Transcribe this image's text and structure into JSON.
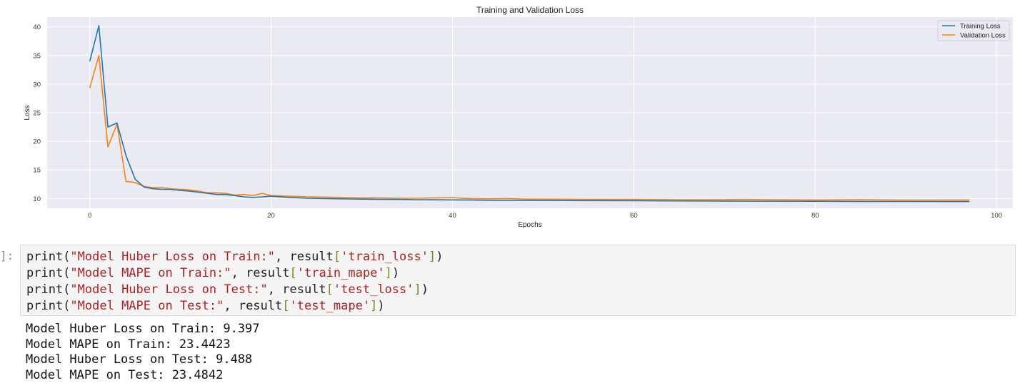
{
  "chart_data": {
    "type": "line",
    "title": "Training and Validation Loss",
    "xlabel": "Epochs",
    "ylabel": "Loss",
    "xlim": [
      -4.7,
      101.8
    ],
    "ylim": [
      8.3,
      41.7
    ],
    "xticks": [
      0,
      20,
      40,
      60,
      80,
      100
    ],
    "yticks": [
      10,
      15,
      20,
      25,
      30,
      35,
      40
    ],
    "grid": true,
    "legend_position": "top-right",
    "series": [
      {
        "name": "Training Loss",
        "color": "#1f77b4",
        "x": [
          0,
          1,
          2,
          3,
          4,
          5,
          6,
          7,
          8,
          9,
          10,
          11,
          12,
          13,
          14,
          15,
          16,
          17,
          18,
          19,
          20,
          22,
          24,
          26,
          28,
          30,
          32,
          34,
          36,
          38,
          40,
          42,
          44,
          46,
          48,
          50,
          55,
          60,
          65,
          70,
          75,
          80,
          85,
          90,
          95,
          97
        ],
        "values": [
          34.0,
          40.2,
          22.5,
          23.2,
          17.5,
          13.4,
          12.0,
          11.7,
          11.6,
          11.6,
          11.4,
          11.3,
          11.1,
          10.9,
          10.7,
          10.7,
          10.5,
          10.3,
          10.2,
          10.3,
          10.4,
          10.2,
          10.05,
          10.0,
          9.95,
          9.9,
          9.85,
          9.85,
          9.8,
          9.78,
          9.76,
          9.74,
          9.7,
          9.7,
          9.68,
          9.66,
          9.63,
          9.62,
          9.58,
          9.56,
          9.54,
          9.52,
          9.5,
          9.48,
          9.47,
          9.47
        ]
      },
      {
        "name": "Validation Loss",
        "color": "#ff7f0e",
        "x": [
          0,
          1,
          2,
          3,
          4,
          5,
          6,
          7,
          8,
          9,
          10,
          11,
          12,
          13,
          14,
          15,
          16,
          17,
          18,
          19,
          20,
          22,
          24,
          26,
          28,
          30,
          32,
          34,
          36,
          38,
          40,
          42,
          44,
          46,
          48,
          50,
          55,
          60,
          65,
          70,
          72,
          75,
          80,
          85,
          90,
          95,
          97
        ],
        "values": [
          29.3,
          35.0,
          19.0,
          23.0,
          13.0,
          12.8,
          12.1,
          11.9,
          11.9,
          11.7,
          11.6,
          11.5,
          11.3,
          11.0,
          11.0,
          10.9,
          10.6,
          10.7,
          10.5,
          10.9,
          10.5,
          10.4,
          10.3,
          10.25,
          10.2,
          10.1,
          10.1,
          10.05,
          10.05,
          10.1,
          10.15,
          10.0,
          9.95,
          10.0,
          9.9,
          9.9,
          9.85,
          9.85,
          9.8,
          9.8,
          9.85,
          9.8,
          9.75,
          9.78,
          9.72,
          9.75,
          9.75
        ]
      }
    ]
  },
  "cell": {
    "prompt": "]:",
    "lines": [
      [
        {
          "c": "tok-fn",
          "t": "print("
        },
        {
          "c": "tok-str",
          "t": "\"Model Huber Loss on Train:\""
        },
        {
          "c": "tok-plain",
          "t": ", result"
        },
        {
          "c": "tok-br",
          "t": "["
        },
        {
          "c": "tok-str",
          "t": "'train_loss'"
        },
        {
          "c": "tok-br",
          "t": "]"
        },
        {
          "c": "tok-plain",
          "t": ")"
        }
      ],
      [
        {
          "c": "tok-fn",
          "t": "print("
        },
        {
          "c": "tok-str",
          "t": "\"Model MAPE on Train:\""
        },
        {
          "c": "tok-plain",
          "t": ", result"
        },
        {
          "c": "tok-br",
          "t": "["
        },
        {
          "c": "tok-str",
          "t": "'train_mape'"
        },
        {
          "c": "tok-br",
          "t": "]"
        },
        {
          "c": "tok-plain",
          "t": ")"
        }
      ],
      [
        {
          "c": "tok-fn",
          "t": "print("
        },
        {
          "c": "tok-str",
          "t": "\"Model Huber Loss on Test:\""
        },
        {
          "c": "tok-plain",
          "t": ", result"
        },
        {
          "c": "tok-br",
          "t": "["
        },
        {
          "c": "tok-str",
          "t": "'test_loss'"
        },
        {
          "c": "tok-br",
          "t": "]"
        },
        {
          "c": "tok-plain",
          "t": ")"
        }
      ],
      [
        {
          "c": "tok-fn",
          "t": "print("
        },
        {
          "c": "tok-str",
          "t": "\"Model MAPE on Test:\""
        },
        {
          "c": "tok-plain",
          "t": ", result"
        },
        {
          "c": "tok-br",
          "t": "["
        },
        {
          "c": "tok-str",
          "t": "'test_mape'"
        },
        {
          "c": "tok-br",
          "t": "]"
        },
        {
          "c": "tok-plain",
          "t": ")"
        }
      ]
    ],
    "output": [
      "Model Huber Loss on Train: 9.397",
      "Model MAPE on Train: 23.4423",
      "Model Huber Loss on Test: 9.488",
      "Model MAPE on Test: 23.4842"
    ]
  }
}
